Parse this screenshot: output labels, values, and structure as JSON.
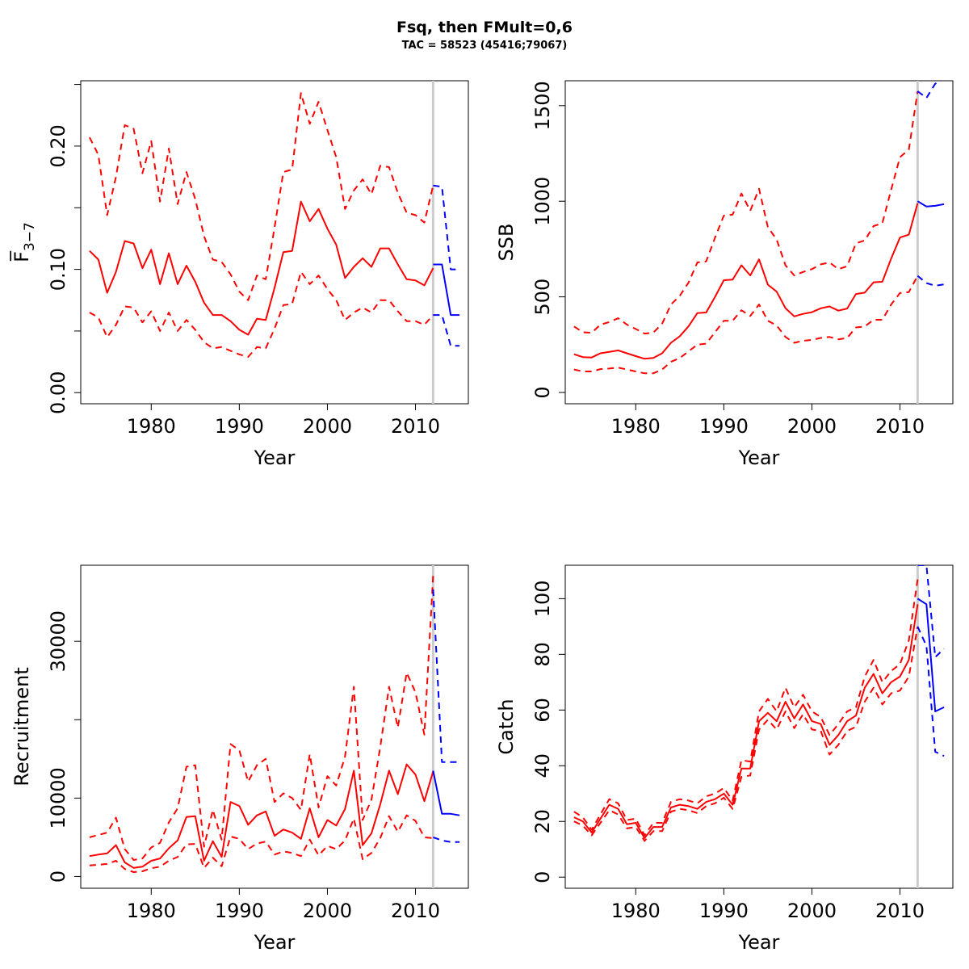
{
  "header": {
    "title": "Fsq, then FMult=0,6",
    "subtitle": "TAC = 58523 (45416;79067)"
  },
  "colors": {
    "historic": "#ff0000",
    "forecast": "#0000ff",
    "divider": "#cccccc",
    "axis": "#000000"
  },
  "chart_data": [
    {
      "type": "line",
      "panel": "fbar",
      "xlabel": "Year",
      "ylabel": "F̅",
      "ylabel_sub": "3−7",
      "xlim": [
        1972,
        2016
      ],
      "ylim": [
        -0.009,
        0.253
      ],
      "xticks": [
        1980,
        1990,
        2000,
        2010
      ],
      "yticks": [
        0,
        0.05,
        0.1,
        0.15,
        0.2,
        0.25
      ],
      "ytick_labels": [
        "0.00",
        "",
        "0.10",
        "",
        "0.20",
        ""
      ],
      "divider_year": 2012,
      "historic": {
        "x": [
          1973,
          1974,
          1975,
          1976,
          1977,
          1978,
          1979,
          1980,
          1981,
          1982,
          1983,
          1984,
          1985,
          1986,
          1987,
          1988,
          1989,
          1990,
          1991,
          1992,
          1993,
          1994,
          1995,
          1996,
          1997,
          1998,
          1999,
          2000,
          2001,
          2002,
          2003,
          2004,
          2005,
          2006,
          2007,
          2008,
          2009,
          2010,
          2011,
          2012
        ],
        "mid": [
          0.115,
          0.108,
          0.081,
          0.098,
          0.123,
          0.121,
          0.101,
          0.116,
          0.088,
          0.113,
          0.088,
          0.103,
          0.09,
          0.073,
          0.063,
          0.063,
          0.058,
          0.051,
          0.047,
          0.06,
          0.059,
          0.085,
          0.114,
          0.115,
          0.155,
          0.139,
          0.149,
          0.133,
          0.12,
          0.093,
          0.102,
          0.109,
          0.102,
          0.117,
          0.117,
          0.104,
          0.092,
          0.091,
          0.087,
          0.101
        ],
        "low": [
          0.065,
          0.061,
          0.045,
          0.055,
          0.07,
          0.069,
          0.057,
          0.066,
          0.05,
          0.065,
          0.05,
          0.059,
          0.051,
          0.041,
          0.036,
          0.037,
          0.034,
          0.031,
          0.029,
          0.037,
          0.036,
          0.052,
          0.071,
          0.072,
          0.098,
          0.088,
          0.095,
          0.084,
          0.075,
          0.059,
          0.065,
          0.069,
          0.065,
          0.075,
          0.075,
          0.066,
          0.058,
          0.058,
          0.055,
          0.063
        ],
        "high": [
          0.207,
          0.193,
          0.144,
          0.175,
          0.217,
          0.214,
          0.178,
          0.204,
          0.155,
          0.198,
          0.153,
          0.179,
          0.157,
          0.127,
          0.108,
          0.106,
          0.096,
          0.082,
          0.075,
          0.095,
          0.092,
          0.134,
          0.179,
          0.181,
          0.243,
          0.218,
          0.236,
          0.213,
          0.191,
          0.149,
          0.164,
          0.173,
          0.161,
          0.184,
          0.183,
          0.162,
          0.146,
          0.144,
          0.138,
          0.168
        ]
      },
      "forecast": {
        "x": [
          2012,
          2013,
          2014,
          2015
        ],
        "mid": [
          0.104,
          0.104,
          0.063,
          0.063
        ],
        "low": [
          0.063,
          0.063,
          0.038,
          0.038
        ],
        "high": [
          0.168,
          0.167,
          0.1,
          0.1
        ]
      }
    },
    {
      "type": "line",
      "panel": "ssb",
      "xlabel": "Year",
      "ylabel": "SSB",
      "xlim": [
        1972,
        2016
      ],
      "ylim": [
        -59,
        1630
      ],
      "xticks": [
        1980,
        1990,
        2000,
        2010
      ],
      "yticks": [
        0,
        500,
        1000,
        1500
      ],
      "ytick_labels": [
        "0",
        "500",
        "1000",
        "1500"
      ],
      "divider_year": 2012,
      "historic": {
        "x": [
          1973,
          1974,
          1975,
          1976,
          1977,
          1978,
          1979,
          1980,
          1981,
          1982,
          1983,
          1984,
          1985,
          1986,
          1987,
          1988,
          1989,
          1990,
          1991,
          1992,
          1993,
          1994,
          1995,
          1996,
          1997,
          1998,
          1999,
          2000,
          2001,
          2002,
          2003,
          2004,
          2005,
          2006,
          2007,
          2008,
          2009,
          2010,
          2011,
          2012
        ],
        "mid": [
          200,
          185,
          183,
          205,
          212,
          220,
          205,
          190,
          176,
          181,
          205,
          260,
          294,
          346,
          415,
          418,
          500,
          587,
          590,
          665,
          612,
          696,
          564,
          527,
          441,
          398,
          411,
          420,
          440,
          450,
          428,
          439,
          515,
          522,
          576,
          579,
          700,
          810,
          825,
          990
        ],
        "low": [
          120,
          110,
          110,
          122,
          125,
          130,
          120,
          110,
          100,
          100,
          120,
          160,
          180,
          215,
          250,
          255,
          315,
          375,
          375,
          430,
          400,
          460,
          375,
          350,
          290,
          260,
          270,
          275,
          285,
          290,
          278,
          285,
          340,
          345,
          380,
          380,
          460,
          520,
          525,
          610
        ],
        "high": [
          345,
          315,
          312,
          355,
          368,
          388,
          355,
          332,
          308,
          313,
          360,
          460,
          505,
          575,
          680,
          685,
          810,
          925,
          930,
          1040,
          950,
          1065,
          865,
          800,
          665,
          612,
          630,
          645,
          670,
          680,
          645,
          660,
          780,
          795,
          870,
          885,
          1060,
          1230,
          1270,
          1575
        ]
      },
      "forecast": {
        "x": [
          2012,
          2013,
          2014,
          2015
        ],
        "mid": [
          1000,
          972,
          976,
          985
        ],
        "low": [
          610,
          572,
          558,
          565
        ],
        "high": [
          1575,
          1540,
          1615,
          1640
        ]
      }
    },
    {
      "type": "line",
      "panel": "recruitment",
      "xlabel": "Year",
      "ylabel": "Recruitment",
      "xlim": [
        1972,
        2016
      ],
      "ylim": [
        -1500,
        39700
      ],
      "xticks": [
        1980,
        1990,
        2000,
        2010
      ],
      "yticks": [
        0,
        10000,
        20000,
        30000
      ],
      "ytick_labels": [
        "0",
        "10000",
        "",
        "30000"
      ],
      "divider_year": 2012,
      "historic": {
        "x": [
          1973,
          1974,
          1975,
          1976,
          1977,
          1978,
          1979,
          1980,
          1981,
          1982,
          1983,
          1984,
          1985,
          1986,
          1987,
          1988,
          1989,
          1990,
          1991,
          1992,
          1993,
          1994,
          1995,
          1996,
          1997,
          1998,
          1999,
          2000,
          2001,
          2002,
          2003,
          2004,
          2005,
          2006,
          2007,
          2008,
          2009,
          2010,
          2011,
          2012
        ],
        "mid": [
          2600,
          2800,
          2950,
          4000,
          1800,
          1100,
          1250,
          2000,
          2300,
          3600,
          4600,
          7600,
          7700,
          2000,
          4500,
          2500,
          9500,
          9000,
          6600,
          7800,
          8300,
          5200,
          6000,
          5600,
          4800,
          8700,
          5000,
          7200,
          6500,
          8600,
          13500,
          4000,
          5500,
          9200,
          13500,
          10500,
          14300,
          13000,
          9600,
          13400
        ],
        "low": [
          1400,
          1500,
          1600,
          2000,
          950,
          560,
          660,
          1050,
          1250,
          2000,
          2500,
          4100,
          4150,
          1100,
          2400,
          1300,
          5100,
          4800,
          3500,
          4200,
          4450,
          2800,
          3200,
          3000,
          2600,
          4700,
          2700,
          3900,
          3500,
          4600,
          7400,
          2200,
          3000,
          4900,
          7700,
          5700,
          7800,
          7100,
          5000,
          4900
        ],
        "high": [
          5000,
          5300,
          5600,
          7500,
          3500,
          2100,
          2300,
          3700,
          4300,
          6900,
          8700,
          14000,
          14200,
          3800,
          8500,
          4700,
          16900,
          16100,
          12100,
          14200,
          15000,
          9500,
          10600,
          10000,
          8500,
          15600,
          8800,
          12800,
          11600,
          15300,
          24200,
          7200,
          9800,
          16500,
          24200,
          19000,
          26000,
          23500,
          18100,
          38400
        ]
      },
      "forecast": {
        "x": [
          2012,
          2013,
          2014,
          2015
        ],
        "mid": [
          13500,
          8000,
          8000,
          7800
        ],
        "low": [
          5000,
          4600,
          4400,
          4400
        ],
        "high": [
          36600,
          14600,
          14600,
          14600
        ]
      }
    },
    {
      "type": "line",
      "panel": "catch",
      "xlabel": "Year",
      "ylabel": "Catch",
      "xlim": [
        1972,
        2016
      ],
      "ylim": [
        -4,
        112
      ],
      "xticks": [
        1980,
        1990,
        2000,
        2010
      ],
      "yticks": [
        0,
        20,
        40,
        60,
        80,
        100
      ],
      "ytick_labels": [
        "0",
        "20",
        "40",
        "60",
        "80",
        "100"
      ],
      "divider_year": 2012,
      "historic": {
        "x": [
          1973,
          1974,
          1975,
          1976,
          1977,
          1978,
          1979,
          1980,
          1981,
          1982,
          1983,
          1984,
          1985,
          1986,
          1987,
          1988,
          1989,
          1990,
          1991,
          1992,
          1993,
          1994,
          1995,
          1996,
          1997,
          1998,
          1999,
          2000,
          2001,
          2002,
          2003,
          2004,
          2005,
          2006,
          2007,
          2008,
          2009,
          2010,
          2011,
          2012
        ],
        "mid": [
          21.5,
          20,
          16,
          21,
          26,
          24.5,
          19,
          19.5,
          14,
          18,
          18,
          25,
          26,
          25.5,
          24.5,
          27,
          28,
          30,
          26,
          39,
          39,
          56,
          59,
          56,
          63,
          57,
          62,
          56,
          55,
          47.5,
          51,
          56,
          58,
          68,
          73,
          66,
          70,
          72,
          78,
          98
        ],
        "low": [
          20,
          18.5,
          15,
          19.5,
          24,
          22.5,
          17.5,
          18,
          13,
          16.5,
          16.5,
          23.5,
          24.5,
          24,
          23,
          25.5,
          26.5,
          28.5,
          24.5,
          36,
          36.5,
          53,
          56.5,
          53,
          59.5,
          53.5,
          58.5,
          53,
          52.5,
          44,
          47.5,
          52.5,
          54,
          63,
          68,
          62,
          66,
          67,
          72,
          90
        ],
        "high": [
          23.5,
          21.5,
          17,
          22.5,
          28,
          26.5,
          20.5,
          21,
          15,
          19.5,
          19.5,
          27,
          28,
          27.5,
          26.5,
          29,
          30,
          32,
          27.5,
          42,
          41.5,
          59.5,
          64,
          59.5,
          68,
          61,
          65.5,
          59.5,
          57.5,
          51,
          55,
          59.5,
          61,
          72,
          78,
          70,
          74,
          76.5,
          85,
          107
        ]
      },
      "forecast": {
        "x": [
          2012,
          2013,
          2014,
          2015
        ],
        "mid": [
          100,
          98,
          59.5,
          61
        ],
        "low": [
          90,
          83,
          45,
          43.5
        ],
        "high": [
          112,
          112,
          79,
          82
        ]
      }
    }
  ]
}
